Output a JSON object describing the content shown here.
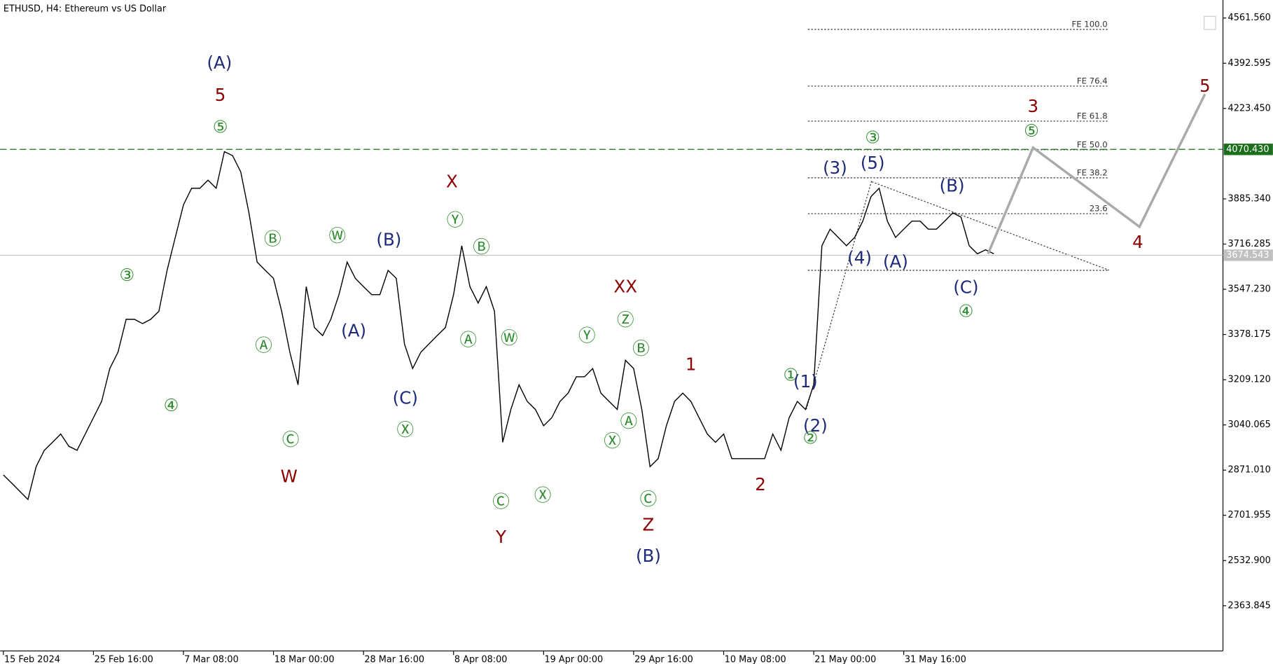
{
  "chart_data": {
    "type": "line",
    "title": "ETHUSD, H4:  Ethereum vs US Dollar",
    "color": "#000000",
    "x": [
      0,
      1,
      2,
      3,
      4,
      5,
      6,
      7,
      8,
      9,
      10,
      11,
      12,
      13,
      14,
      15,
      16,
      17,
      18,
      19,
      20,
      21,
      22,
      23,
      24,
      25,
      26,
      27,
      28,
      29,
      30,
      31,
      32,
      33,
      34,
      35,
      36,
      37,
      38,
      39,
      40,
      41,
      42,
      43,
      44,
      45,
      46,
      47,
      48,
      49,
      50,
      51,
      52,
      53,
      54,
      55,
      56,
      57,
      58,
      59,
      60,
      61,
      62,
      63,
      64,
      65,
      66,
      67,
      68,
      69,
      70,
      71,
      72,
      73,
      74,
      75,
      76,
      77,
      78,
      79,
      80,
      81,
      82,
      83,
      84,
      85,
      86,
      87,
      88,
      89,
      90,
      91,
      92,
      93,
      94,
      95,
      96,
      97,
      98,
      99,
      100,
      101,
      102,
      103,
      104,
      105,
      106,
      107,
      108,
      109,
      110,
      111,
      112,
      113,
      114,
      115,
      116,
      117,
      118,
      119,
      120,
      121
    ],
    "values": [
      2853,
      2823,
      2792,
      2761,
      2884,
      2945,
      2975,
      3006,
      2960,
      2945,
      3006,
      3067,
      3128,
      3251,
      3312,
      3435,
      3435,
      3419,
      3435,
      3465,
      3618,
      3741,
      3863,
      3925,
      3925,
      3955,
      3925,
      4062,
      4047,
      3986,
      3833,
      3649,
      3618,
      3588,
      3465,
      3312,
      3190,
      3557,
      3404,
      3374,
      3435,
      3527,
      3649,
      3588,
      3557,
      3527,
      3527,
      3618,
      3588,
      3343,
      3251,
      3312,
      3343,
      3374,
      3404,
      3527,
      3710,
      3557,
      3496,
      3557,
      3465,
      2975,
      3098,
      3190,
      3128,
      3098,
      3037,
      3067,
      3128,
      3159,
      3220,
      3220,
      3251,
      3159,
      3128,
      3098,
      3282,
      3251,
      3098,
      2884,
      2914,
      3037,
      3128,
      3159,
      3128,
      3067,
      3006,
      2975,
      3006,
      2914,
      2914,
      2914,
      2914,
      2914,
      3006,
      2945,
      3067,
      3128,
      3098,
      3190,
      3710,
      3772,
      3741,
      3710,
      3741,
      3802,
      3894,
      3925,
      3802,
      3741,
      3772,
      3802,
      3802,
      3772,
      3772,
      3802,
      3833,
      3817,
      3710,
      3680,
      3695,
      3680
    ],
    "xlim": [
      -0.2,
      149.2
    ],
    "xticks": [
      {
        "value": 0,
        "label": "15 Feb 2024"
      },
      {
        "value": 11,
        "label": "25 Feb 16:00"
      },
      {
        "value": 22,
        "label": "7 Mar 08:00"
      },
      {
        "value": 33,
        "label": "18 Mar 00:00"
      },
      {
        "value": 44,
        "label": "28 Mar 16:00"
      },
      {
        "value": 55,
        "label": "8 Apr 08:00"
      },
      {
        "value": 66,
        "label": "19 Apr 00:00"
      },
      {
        "value": 77,
        "label": "29 Apr 16:00"
      },
      {
        "value": 88,
        "label": "10 May 08:00"
      },
      {
        "value": 99,
        "label": "21 May 00:00"
      },
      {
        "value": 110,
        "label": "31 May 16:00"
      }
    ],
    "ylim": [
      2195,
      4629
    ],
    "yticks": [
      {
        "value": 4561.56,
        "label": "4561.560"
      },
      4392.595,
      {
        "value": 4223.45,
        "label": "4223.450"
      },
      {
        "value": 3885.34,
        "label": "3885.340"
      },
      3716.285,
      {
        "value": 3547.23,
        "label": "3547.230"
      },
      3378.175,
      {
        "value": 3209.12,
        "label": "3209.120"
      },
      3040.065,
      {
        "value": 2871.01,
        "label": "2871.010"
      },
      2701.955,
      {
        "value": 2532.9,
        "label": "2532.900"
      },
      2363.845
    ],
    "level_line": {
      "value": 4070.43,
      "label": "4070.430",
      "color": "#1b6e1b"
    },
    "price_line": {
      "value": 3674.543,
      "label": "3674.543",
      "color": "#c0c0c0"
    },
    "fib_levels": [
      {
        "label": "FE 100.0",
        "value": 4519
      },
      {
        "label": "FE 76.4",
        "value": 4307
      },
      {
        "label": "FE 61.8",
        "value": 4176
      },
      {
        "label": "FE 50.0",
        "value": 4069
      },
      {
        "label": "FE 38.2",
        "value": 3964
      },
      {
        "label": "23.6",
        "value": 3830
      },
      {
        "value": 3618
      }
    ],
    "forecast": {
      "x": [
        120.3,
        125.8,
        138.8,
        146.8
      ],
      "values": [
        3680,
        4077,
        3781,
        4277
      ],
      "color": "#aaaaaa"
    },
    "annotations": [
      {
        "text": "(A)",
        "color": "#1f2a7a"
      },
      {
        "text": "5",
        "color": "#8b0000"
      },
      {
        "text": "⑤",
        "color": "#2e8b2e"
      },
      {
        "text": "③",
        "color": "#2e8b2e"
      },
      {
        "text": "④",
        "color": "#2e8b2e"
      },
      {
        "text": "Ⓑ",
        "color": "#2e8b2e"
      },
      {
        "text": "Ⓐ",
        "color": "#2e8b2e"
      },
      {
        "text": "Ⓒ",
        "color": "#2e8b2e"
      },
      {
        "text": "W",
        "color": "#8b0000"
      },
      {
        "text": "Ⓦ",
        "color": "#2e8b2e"
      },
      {
        "text": "(A)",
        "color": "#1f2a7a"
      },
      {
        "text": "(B)",
        "color": "#1f2a7a"
      },
      {
        "text": "(C)",
        "color": "#1f2a7a"
      },
      {
        "text": "Ⓧ",
        "color": "#2e8b2e"
      },
      {
        "text": "X",
        "color": "#8b0000"
      },
      {
        "text": "Ⓨ",
        "color": "#2e8b2e"
      },
      {
        "text": "Ⓑ",
        "color": "#2e8b2e"
      },
      {
        "text": "Ⓐ",
        "color": "#2e8b2e"
      },
      {
        "text": "Ⓦ",
        "color": "#2e8b2e"
      },
      {
        "text": "Ⓒ",
        "color": "#2e8b2e"
      },
      {
        "text": "Y",
        "color": "#8b0000"
      },
      {
        "text": "Ⓧ",
        "color": "#2e8b2e"
      },
      {
        "text": "Ⓨ",
        "color": "#2e8b2e"
      },
      {
        "text": "XX",
        "color": "#8b0000"
      },
      {
        "text": "Ⓩ",
        "color": "#2e8b2e"
      },
      {
        "text": "Ⓑ",
        "color": "#2e8b2e"
      },
      {
        "text": "Ⓐ",
        "color": "#2e8b2e"
      },
      {
        "text": "Ⓧ",
        "color": "#2e8b2e"
      },
      {
        "text": "Ⓒ",
        "color": "#2e8b2e"
      },
      {
        "text": "Z",
        "color": "#8b0000"
      },
      {
        "text": "(B)",
        "color": "#1f2a7a"
      },
      {
        "text": "1",
        "color": "#8b0000"
      },
      {
        "text": "2",
        "color": "#8b0000"
      },
      {
        "text": "①",
        "color": "#2e8b2e"
      },
      {
        "text": "(1)",
        "color": "#1f2a7a"
      },
      {
        "text": "(2)",
        "color": "#1f2a7a"
      },
      {
        "text": "②",
        "color": "#2e8b2e"
      },
      {
        "text": "(3)",
        "color": "#1f2a7a"
      },
      {
        "text": "③",
        "color": "#2e8b2e"
      },
      {
        "text": "(5)",
        "color": "#1f2a7a"
      },
      {
        "text": "(4)",
        "color": "#1f2a7a"
      },
      {
        "text": "(A)",
        "color": "#1f2a7a"
      },
      {
        "text": "(B)",
        "color": "#1f2a7a"
      },
      {
        "text": "(C)",
        "color": "#1f2a7a"
      },
      {
        "text": "④",
        "color": "#2e8b2e"
      },
      {
        "text": "3",
        "color": "#8b0000"
      },
      {
        "text": "⑤",
        "color": "#2e8b2e"
      },
      {
        "text": "4",
        "color": "#8b0000"
      },
      {
        "text": "5",
        "color": "#8b0000"
      }
    ]
  }
}
